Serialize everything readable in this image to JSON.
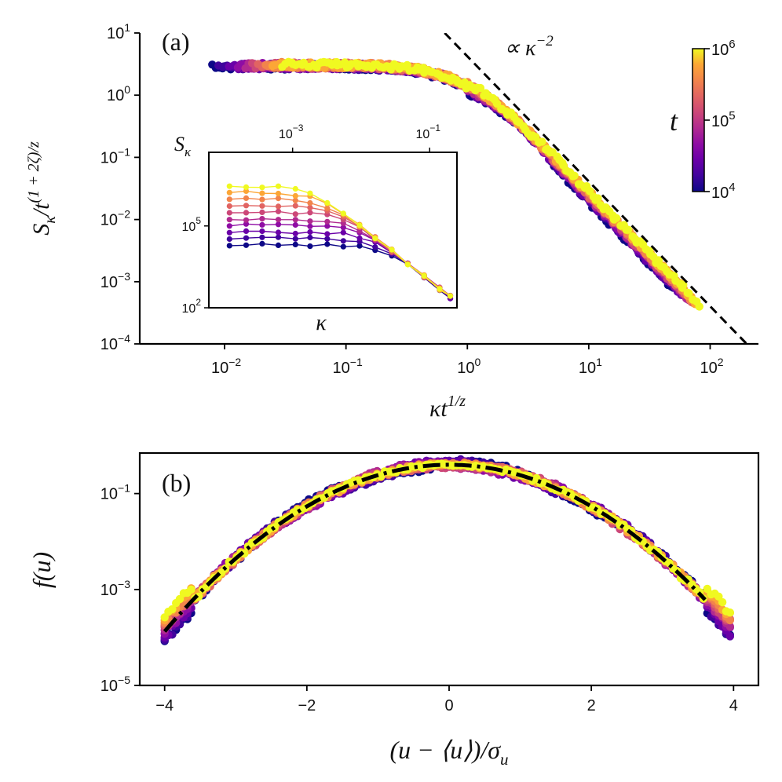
{
  "chart_data": [
    {
      "type": "scatter",
      "panel_label": "(a)",
      "xlabel": "κt",
      "xlabel_sup": "1/z",
      "ylabel": "S",
      "ylabel_sub": "κ",
      "ylabel_tail": "/t",
      "ylabel_sup": "(1 + 2ζ)/z",
      "xscale": "log",
      "yscale": "log",
      "xlim": [
        0.002,
        250
      ],
      "ylim": [
        0.0001,
        10
      ],
      "x_ticks": [
        {
          "base": "10",
          "exp": "−2",
          "value": 0.01
        },
        {
          "base": "10",
          "exp": "−1",
          "value": 0.1
        },
        {
          "base": "10",
          "exp": "0",
          "value": 1
        },
        {
          "base": "10",
          "exp": "1",
          "value": 10
        },
        {
          "base": "10",
          "exp": "2",
          "value": 100
        }
      ],
      "y_ticks": [
        {
          "base": "10",
          "exp": "1",
          "value": 10
        },
        {
          "base": "10",
          "exp": "0",
          "value": 1
        },
        {
          "base": "10",
          "exp": "−1",
          "value": 0.1
        },
        {
          "base": "10",
          "exp": "−2",
          "value": 0.01
        },
        {
          "base": "10",
          "exp": "−3",
          "value": 0.001
        },
        {
          "base": "10",
          "exp": "−4",
          "value": 0.0001
        }
      ],
      "scaling_function": {
        "plateau": 3.0,
        "crossover": 0.9,
        "slope": -2
      },
      "reference_line": {
        "label": "∝ κ",
        "label_sup": "−2",
        "x": [
          0.65,
          200
        ],
        "y": [
          10,
          0.0001
        ],
        "style": "dashed"
      },
      "series": [
        {
          "t": 10000,
          "x_min": 0.008,
          "x_max": 50,
          "color": "#0d0887"
        },
        {
          "t": 17800,
          "x_min": 0.009,
          "x_max": 55,
          "color": "#41049d"
        },
        {
          "t": 31600,
          "x_min": 0.011,
          "x_max": 60,
          "color": "#6a00a8"
        },
        {
          "t": 56200,
          "x_min": 0.013,
          "x_max": 63,
          "color": "#8f0da4"
        },
        {
          "t": 100000,
          "x_min": 0.015,
          "x_max": 66,
          "color": "#b12a90"
        },
        {
          "t": 178000,
          "x_min": 0.017,
          "x_max": 70,
          "color": "#cc4778"
        },
        {
          "t": 316000,
          "x_min": 0.019,
          "x_max": 73,
          "color": "#e16462"
        },
        {
          "t": 562000,
          "x_min": 0.022,
          "x_max": 76,
          "color": "#f2844b"
        },
        {
          "t": 750000,
          "x_min": 0.025,
          "x_max": 78,
          "color": "#fca636"
        },
        {
          "t": 1000000,
          "x_min": 0.03,
          "x_max": 80,
          "color": "#f0f921"
        }
      ],
      "colorbar": {
        "label": "t",
        "scale": "log",
        "range": [
          10000,
          1000000
        ],
        "ticks": [
          {
            "base": "10",
            "exp": "6"
          },
          {
            "base": "10",
            "exp": "5"
          },
          {
            "base": "10",
            "exp": "4"
          }
        ],
        "colormap": [
          "#0d0887",
          "#41049d",
          "#6a00a8",
          "#8f0da4",
          "#b12a90",
          "#cc4778",
          "#e16462",
          "#f2844b",
          "#fca636",
          "#f0f921"
        ]
      },
      "inset": {
        "type": "line",
        "xlabel": "κ",
        "ylabel": "S",
        "ylabel_sub": "κ",
        "xscale": "log",
        "yscale": "log",
        "xlim": [
          6e-05,
          0.25
        ],
        "ylim": [
          100,
          50000000
        ],
        "x_ticks": [
          {
            "base": "10",
            "exp": "−3",
            "value": 0.001
          },
          {
            "base": "10",
            "exp": "−1",
            "value": 0.1
          }
        ],
        "y_ticks": [
          {
            "base": "10",
            "exp": "5",
            "value": 100000
          },
          {
            "base": "10",
            "exp": "2",
            "value": 100
          }
        ],
        "kappa_points": [
          0.00012,
          0.00021,
          0.00036,
          0.00062,
          0.0011,
          0.0018,
          0.0032,
          0.0055,
          0.0095,
          0.016,
          0.028,
          0.048,
          0.083,
          0.14,
          0.2
        ],
        "plateau_values": [
          20000,
          35000,
          60000,
          105000,
          180000,
          320000,
          560000,
          1000000,
          1750000,
          3000000
        ],
        "large_kappa_value": {
          "kappa": 0.2,
          "S": 250
        }
      }
    },
    {
      "type": "scatter",
      "panel_label": "(b)",
      "xlabel": "(u − ⟨u⟩)/σ",
      "xlabel_sub": "u",
      "ylabel": "f(u)",
      "xscale": "linear",
      "yscale": "log",
      "xlim": [
        -4.35,
        4.35
      ],
      "ylim": [
        1e-05,
        0.7
      ],
      "x_ticks": [
        {
          "label": "−4",
          "value": -4
        },
        {
          "label": "−2",
          "value": -2
        },
        {
          "label": "0",
          "value": 0
        },
        {
          "label": "2",
          "value": 2
        },
        {
          "label": "4",
          "value": 4
        }
      ],
      "y_ticks": [
        {
          "base": "10",
          "exp": "−1",
          "value": 0.1
        },
        {
          "base": "10",
          "exp": "−3",
          "value": 0.001
        },
        {
          "base": "10",
          "exp": "−5",
          "value": 1e-05
        }
      ],
      "reference_curve": {
        "name": "Gaussian",
        "mean": 0,
        "sigma": 1,
        "style": "dash-dot"
      },
      "x_range": [
        -4.0,
        3.95
      ]
    }
  ]
}
